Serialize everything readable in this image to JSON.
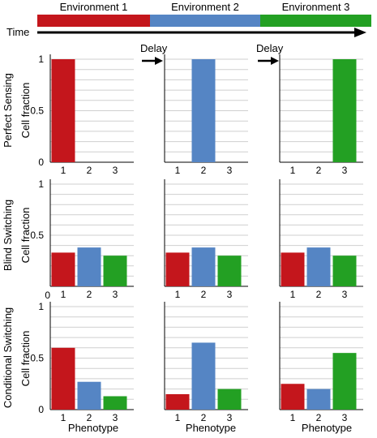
{
  "colors": {
    "phenotype_1": "#c4161c",
    "phenotype_2": "#5585c4",
    "phenotype_3": "#23a023",
    "grid": "#cfcfcf",
    "axis": "#000000"
  },
  "environment_bar": {
    "labels": [
      "Environment 1",
      "Environment 2",
      "Environment 3"
    ],
    "colors": [
      "#c4161c",
      "#5585c4",
      "#23a023"
    ],
    "time_label": "Time"
  },
  "delay_labels": [
    "Delay",
    "Delay"
  ],
  "row_labels": [
    "Perfect Sensing",
    "Blind Switching",
    "Conditional Switching"
  ],
  "y_axis_label": "Cell fraction",
  "x_axis_label": "Phenotype",
  "y_tick_labels": [
    "0",
    "0.5",
    "1"
  ],
  "x_tick_labels": [
    "1",
    "2",
    "3"
  ],
  "chart_data": [
    {
      "type": "bar",
      "row": "Perfect Sensing",
      "environment": "Environment 1",
      "categories": [
        "1",
        "2",
        "3"
      ],
      "values": [
        1.0,
        0.0,
        0.0
      ],
      "ylim": [
        0,
        1
      ],
      "ylabel": "Cell fraction",
      "grid": true
    },
    {
      "type": "bar",
      "row": "Perfect Sensing",
      "environment": "Environment 2",
      "categories": [
        "1",
        "2",
        "3"
      ],
      "values": [
        0.0,
        1.0,
        0.0
      ],
      "ylim": [
        0,
        1
      ],
      "grid": true
    },
    {
      "type": "bar",
      "row": "Perfect Sensing",
      "environment": "Environment 3",
      "categories": [
        "1",
        "2",
        "3"
      ],
      "values": [
        0.0,
        0.0,
        1.0
      ],
      "ylim": [
        0,
        1
      ],
      "grid": true
    },
    {
      "type": "bar",
      "row": "Blind Switching",
      "environment": "Environment 1",
      "categories": [
        "1",
        "2",
        "3"
      ],
      "values": [
        0.33,
        0.38,
        0.3
      ],
      "ylim": [
        0,
        1
      ],
      "ylabel": "Cell fraction",
      "grid": true
    },
    {
      "type": "bar",
      "row": "Blind Switching",
      "environment": "Environment 2",
      "categories": [
        "1",
        "2",
        "3"
      ],
      "values": [
        0.33,
        0.38,
        0.3
      ],
      "ylim": [
        0,
        1
      ],
      "grid": true
    },
    {
      "type": "bar",
      "row": "Blind Switching",
      "environment": "Environment 3",
      "categories": [
        "1",
        "2",
        "3"
      ],
      "values": [
        0.33,
        0.38,
        0.3
      ],
      "ylim": [
        0,
        1
      ],
      "grid": true
    },
    {
      "type": "bar",
      "row": "Conditional Switching",
      "environment": "Environment 1",
      "categories": [
        "1",
        "2",
        "3"
      ],
      "values": [
        0.6,
        0.27,
        0.13
      ],
      "ylim": [
        0,
        1
      ],
      "ylabel": "Cell fraction",
      "xlabel": "Phenotype",
      "grid": true
    },
    {
      "type": "bar",
      "row": "Conditional Switching",
      "environment": "Environment 2",
      "categories": [
        "1",
        "2",
        "3"
      ],
      "values": [
        0.15,
        0.65,
        0.2
      ],
      "ylim": [
        0,
        1
      ],
      "xlabel": "Phenotype",
      "grid": true
    },
    {
      "type": "bar",
      "row": "Conditional Switching",
      "environment": "Environment 3",
      "categories": [
        "1",
        "2",
        "3"
      ],
      "values": [
        0.25,
        0.2,
        0.55
      ],
      "ylim": [
        0,
        1
      ],
      "xlabel": "Phenotype",
      "grid": true
    }
  ]
}
